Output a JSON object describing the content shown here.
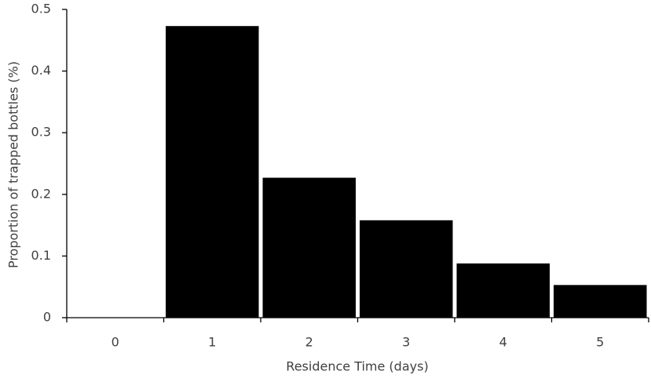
{
  "chart_data": {
    "type": "bar",
    "xlabel": "Residence Time (days)",
    "ylabel": "Proportion of trapped bottles (%)",
    "categories": [
      "0",
      "1",
      "2",
      "3",
      "4",
      "5"
    ],
    "values": [
      0,
      0.473,
      0.227,
      0.158,
      0.088,
      0.053
    ],
    "color": "#000000",
    "ylim": [
      0,
      0.5
    ],
    "yticks": [
      0,
      0.1,
      0.2,
      0.3,
      0.4,
      0.5
    ],
    "grid": false
  }
}
